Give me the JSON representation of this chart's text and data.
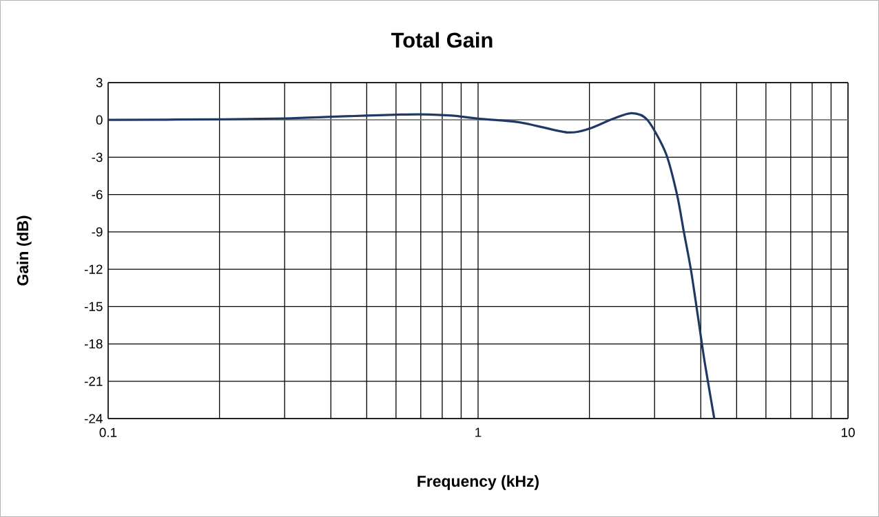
{
  "chart_data": {
    "type": "line",
    "title": "Total Gain",
    "xlabel": "Frequency (kHz)",
    "ylabel": "Gain  (dB)",
    "log": "x",
    "grid": true,
    "marker": "none",
    "line_style": "solid",
    "xlim": [
      0.1,
      10
    ],
    "ylim": [
      -24,
      3
    ],
    "xticks": [
      0.1,
      {
        "value": 0.2,
        "label": null
      },
      {
        "value": 0.3,
        "label": null
      },
      {
        "value": 0.4,
        "label": null
      },
      {
        "value": 0.5,
        "label": null
      },
      {
        "value": 0.6,
        "label": null
      },
      {
        "value": 0.7,
        "label": null
      },
      {
        "value": 0.8,
        "label": null
      },
      {
        "value": 0.9,
        "label": null
      },
      1,
      {
        "value": 2,
        "label": null
      },
      {
        "value": 3,
        "label": null
      },
      {
        "value": 4,
        "label": null
      },
      {
        "value": 5,
        "label": null
      },
      {
        "value": 6,
        "label": null
      },
      {
        "value": 7,
        "label": null
      },
      {
        "value": 8,
        "label": null
      },
      {
        "value": 9,
        "label": null
      },
      10
    ],
    "yticks": [
      3,
      0,
      -3,
      -6,
      -9,
      -12,
      -15,
      -18,
      -21,
      -24
    ],
    "series": [
      {
        "color": "#1f3864",
        "x": [
          0.1,
          0.2,
          0.3,
          0.4,
          0.5,
          0.6,
          0.7,
          0.85,
          1.0,
          1.3,
          1.74,
          2.0,
          2.3,
          2.6,
          2.87,
          3.22,
          3.45,
          3.6,
          3.76,
          3.93,
          4.1,
          4.35
        ],
        "values": [
          0,
          0.05,
          0.12,
          0.25,
          0.35,
          0.42,
          0.45,
          0.35,
          0.1,
          -0.2,
          -1.0,
          -0.7,
          0.05,
          0.55,
          0,
          -2.7,
          -6,
          -9,
          -12,
          -15.8,
          -19.5,
          -24
        ]
      }
    ]
  }
}
